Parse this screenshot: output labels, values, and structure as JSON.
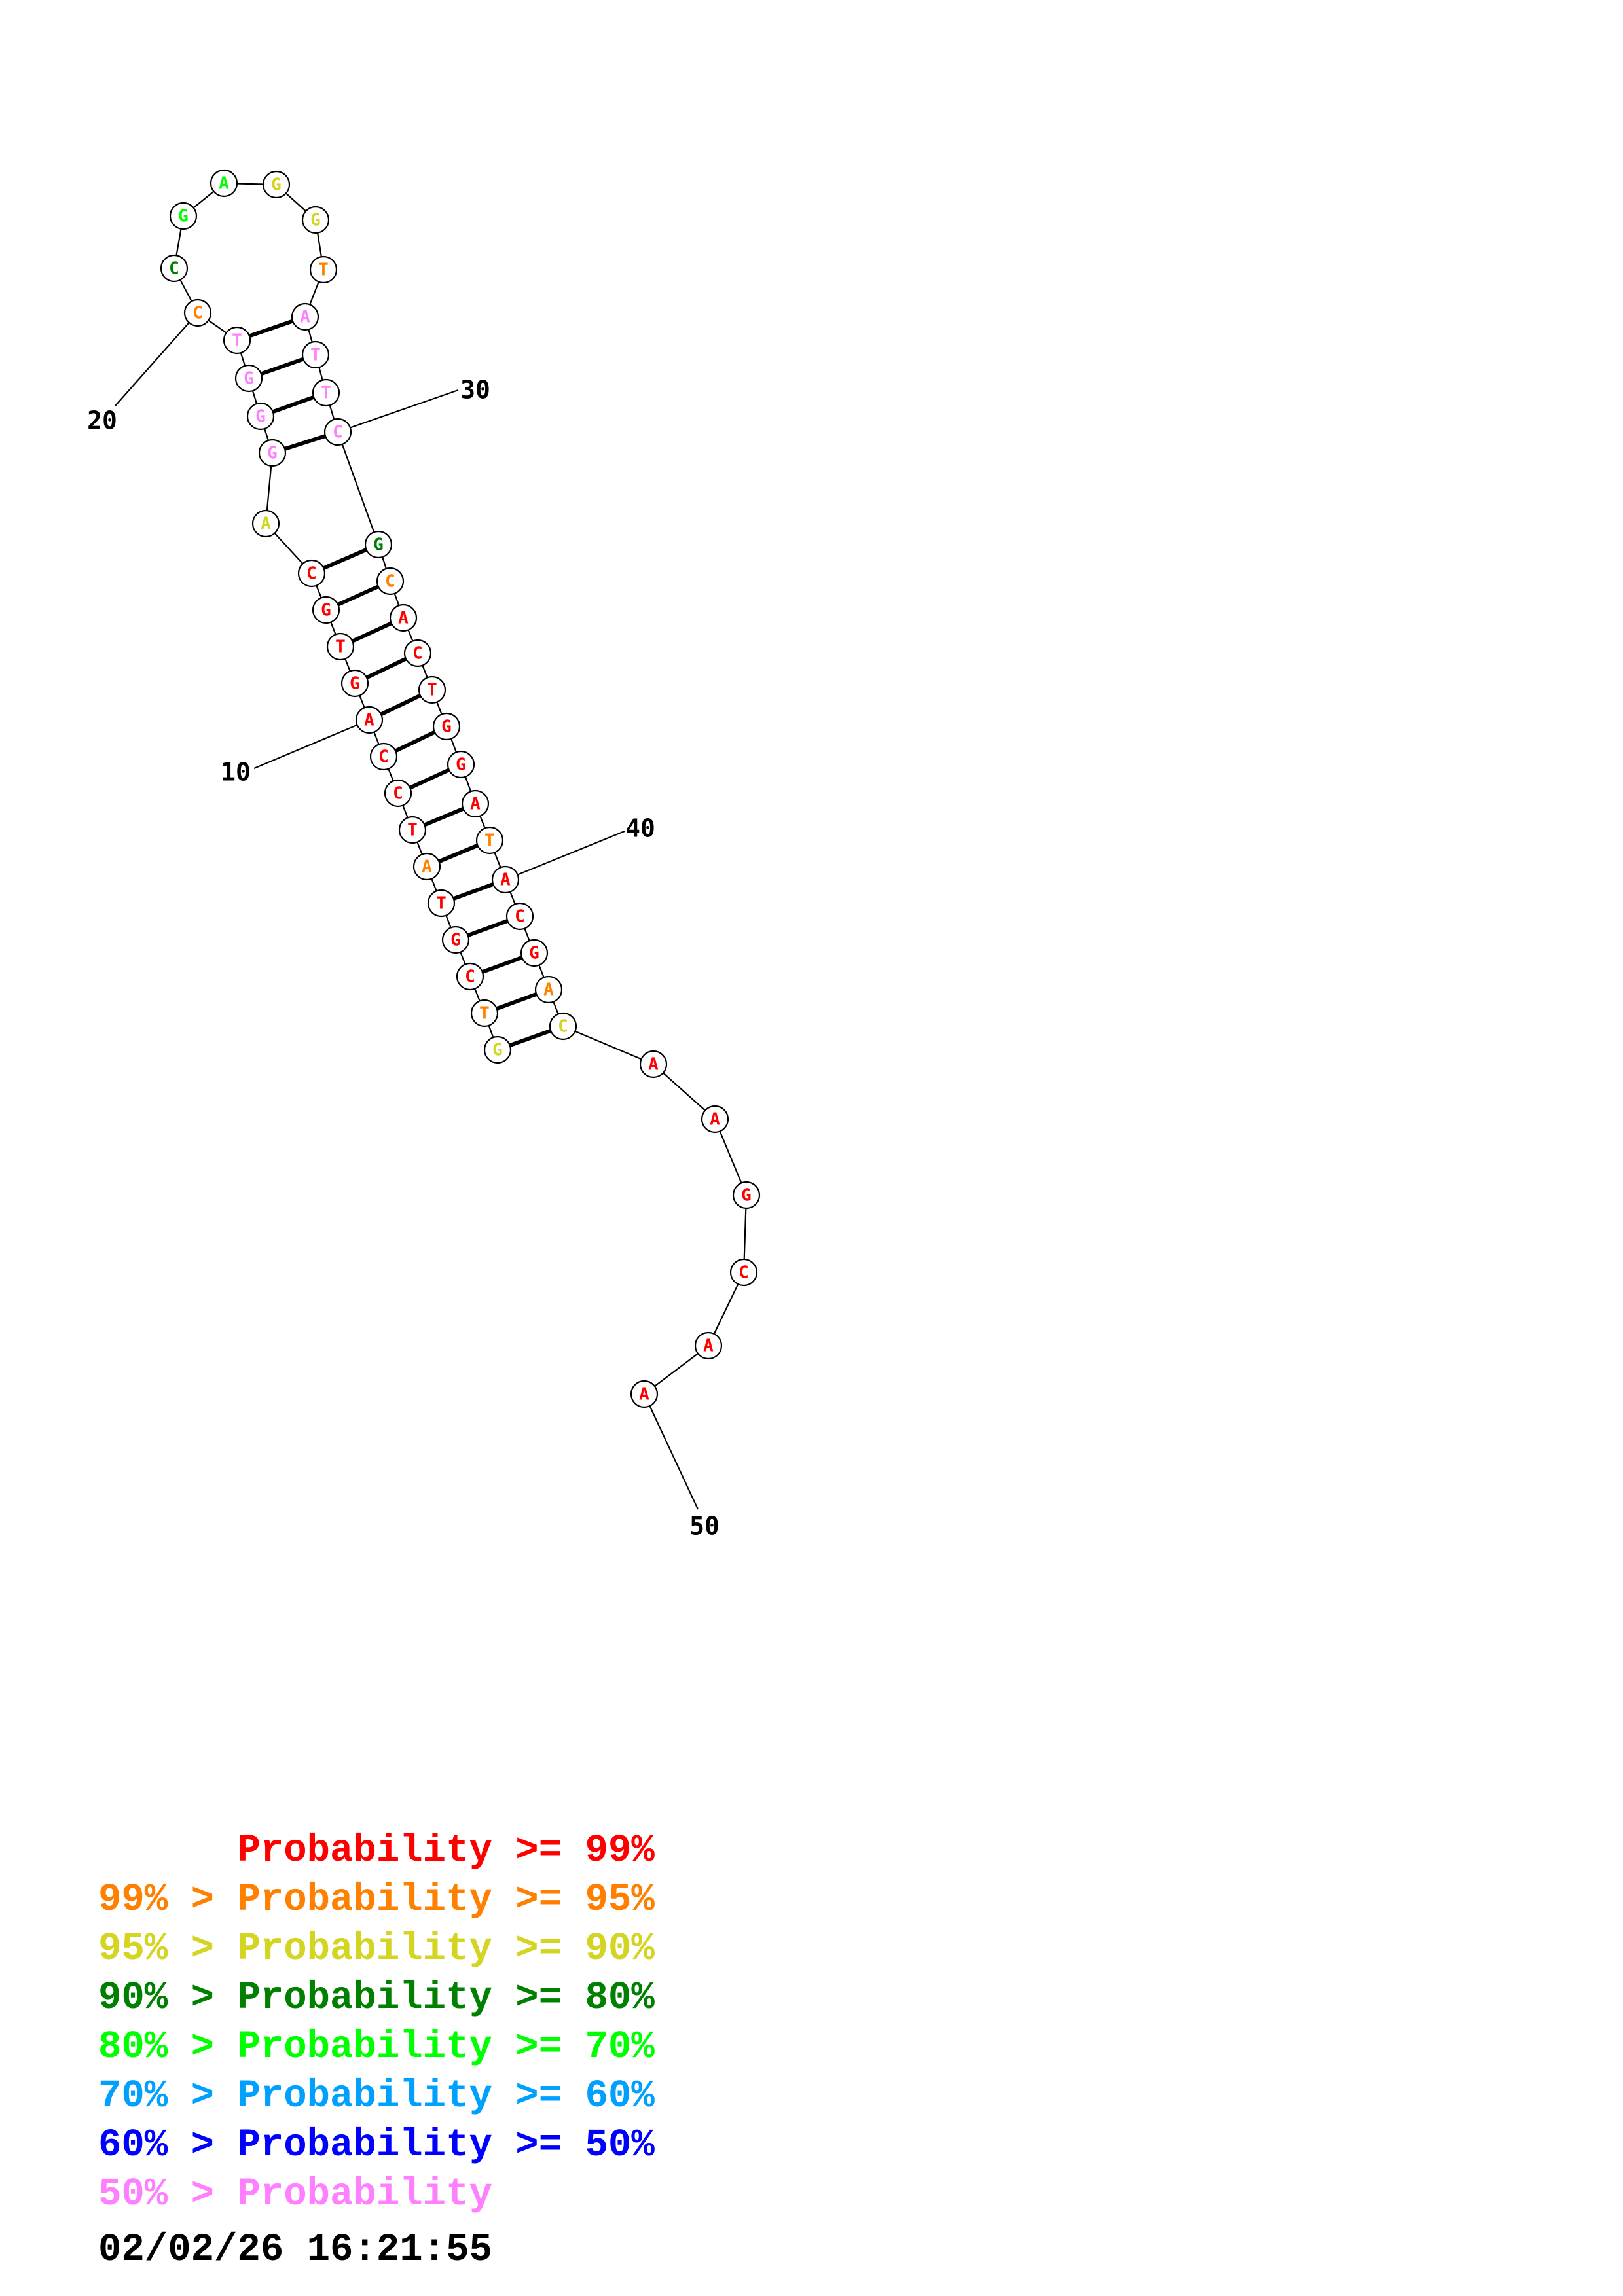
{
  "sequence": [
    "G",
    "T",
    "C",
    "G",
    "T",
    "A",
    "T",
    "C",
    "C",
    "A",
    "G",
    "T",
    "G",
    "C",
    "A",
    "G",
    "G",
    "G",
    "T",
    "C",
    "C",
    "G",
    "A",
    "G",
    "G",
    "T",
    "A",
    "T",
    "T",
    "C",
    "G",
    "C",
    "A",
    "C",
    "T",
    "G",
    "G",
    "A",
    "T",
    "A",
    "C",
    "G",
    "A",
    "C",
    "A",
    "A",
    "G",
    "C",
    "A",
    "A"
  ],
  "probability_class": [
    2,
    1,
    0,
    0,
    0,
    1,
    0,
    0,
    0,
    0,
    0,
    0,
    0,
    0,
    2,
    7,
    7,
    7,
    7,
    1,
    3,
    4,
    4,
    2,
    2,
    1,
    7,
    7,
    7,
    7,
    3,
    1,
    0,
    0,
    0,
    0,
    0,
    0,
    1,
    0,
    0,
    0,
    1,
    2,
    0,
    0,
    0,
    0,
    0,
    0
  ],
  "pairs": [
    [
      1,
      44
    ],
    [
      2,
      43
    ],
    [
      3,
      42
    ],
    [
      4,
      41
    ],
    [
      5,
      40
    ],
    [
      6,
      39
    ],
    [
      7,
      38
    ],
    [
      8,
      37
    ],
    [
      9,
      36
    ],
    [
      10,
      35
    ],
    [
      11,
      34
    ],
    [
      12,
      33
    ],
    [
      13,
      32
    ],
    [
      14,
      31
    ],
    [
      16,
      30
    ],
    [
      17,
      29
    ],
    [
      18,
      28
    ],
    [
      19,
      27
    ]
  ],
  "position_labels": [
    {
      "index": 10,
      "text": "10"
    },
    {
      "index": 20,
      "text": "20"
    },
    {
      "index": 30,
      "text": "30"
    },
    {
      "index": 40,
      "text": "40"
    },
    {
      "index": 50,
      "text": "50"
    }
  ],
  "legend": [
    {
      "prefix": "      ",
      "text": "Probability >= 99%"
    },
    {
      "prefix": "99% > ",
      "text": "Probability >= 95%"
    },
    {
      "prefix": "95% > ",
      "text": "Probability >= 90%"
    },
    {
      "prefix": "90% > ",
      "text": "Probability >= 80%"
    },
    {
      "prefix": "80% > ",
      "text": "Probability >= 70%"
    },
    {
      "prefix": "70% > ",
      "text": "Probability >= 60%"
    },
    {
      "prefix": "60% > ",
      "text": "Probability >= 50%"
    },
    {
      "prefix": "50% > ",
      "text": "Probability"
    }
  ],
  "colors": [
    "#ff0000",
    "#ff8000",
    "#d4d422",
    "#008000",
    "#00ff00",
    "#00a0ff",
    "#0000ff",
    "#ff80ff"
  ],
  "timestamp": "02/02/26 16:21:55"
}
